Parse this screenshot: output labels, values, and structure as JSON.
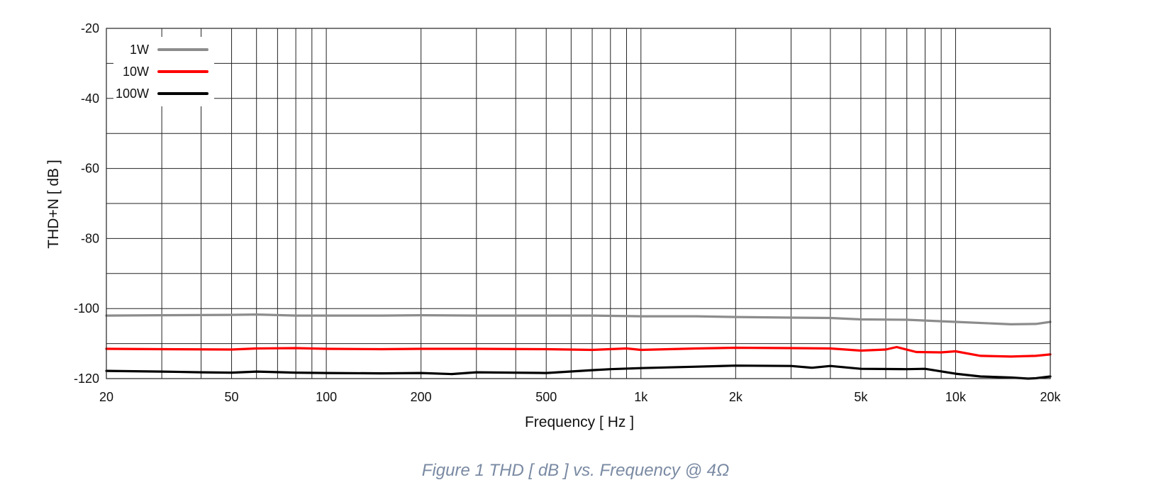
{
  "caption": "Figure 1 THD [ dB ] vs. Frequency @ 4Ω",
  "chart_data": {
    "type": "line",
    "title": "",
    "xlabel": "Frequency [ Hz ]",
    "ylabel": "THD+N [ dB ]",
    "xscale": "log",
    "xlim": [
      20,
      20000
    ],
    "ylim": [
      -120,
      -20
    ],
    "x_ticks": [
      {
        "value": 20,
        "label": "20"
      },
      {
        "value": 50,
        "label": "50"
      },
      {
        "value": 100,
        "label": "100"
      },
      {
        "value": 200,
        "label": "200"
      },
      {
        "value": 500,
        "label": "500"
      },
      {
        "value": 1000,
        "label": "1k"
      },
      {
        "value": 2000,
        "label": "2k"
      },
      {
        "value": 5000,
        "label": "5k"
      },
      {
        "value": 10000,
        "label": "10k"
      },
      {
        "value": 20000,
        "label": "20k"
      }
    ],
    "y_ticks": [
      {
        "value": -20,
        "label": "-20"
      },
      {
        "value": -40,
        "label": "-40"
      },
      {
        "value": -60,
        "label": "-60"
      },
      {
        "value": -80,
        "label": "-80"
      },
      {
        "value": -100,
        "label": "-100"
      },
      {
        "value": -120,
        "label": "-120"
      }
    ],
    "grid": true,
    "legend_position": "top-left",
    "series": [
      {
        "name": "1W",
        "color": "#8c8c8c",
        "points": [
          [
            20,
            -102.0
          ],
          [
            30,
            -101.9
          ],
          [
            50,
            -101.8
          ],
          [
            60,
            -101.7
          ],
          [
            80,
            -102.0
          ],
          [
            100,
            -102.0
          ],
          [
            150,
            -102.0
          ],
          [
            200,
            -101.9
          ],
          [
            300,
            -102.0
          ],
          [
            500,
            -102.0
          ],
          [
            700,
            -102.0
          ],
          [
            1000,
            -102.2
          ],
          [
            1500,
            -102.2
          ],
          [
            2000,
            -102.4
          ],
          [
            3000,
            -102.6
          ],
          [
            4000,
            -102.7
          ],
          [
            5000,
            -103.1
          ],
          [
            7000,
            -103.2
          ],
          [
            10000,
            -103.8
          ],
          [
            15000,
            -104.5
          ],
          [
            18000,
            -104.4
          ],
          [
            20000,
            -103.8
          ]
        ]
      },
      {
        "name": "10W",
        "color": "#ff0000",
        "points": [
          [
            20,
            -111.5
          ],
          [
            30,
            -111.6
          ],
          [
            50,
            -111.7
          ],
          [
            60,
            -111.4
          ],
          [
            80,
            -111.3
          ],
          [
            100,
            -111.5
          ],
          [
            150,
            -111.6
          ],
          [
            200,
            -111.5
          ],
          [
            300,
            -111.5
          ],
          [
            500,
            -111.6
          ],
          [
            700,
            -111.8
          ],
          [
            900,
            -111.4
          ],
          [
            1000,
            -111.8
          ],
          [
            1500,
            -111.4
          ],
          [
            2000,
            -111.2
          ],
          [
            3000,
            -111.3
          ],
          [
            4000,
            -111.4
          ],
          [
            5000,
            -112.0
          ],
          [
            6000,
            -111.7
          ],
          [
            6500,
            -111.0
          ],
          [
            7500,
            -112.4
          ],
          [
            9000,
            -112.5
          ],
          [
            10000,
            -112.2
          ],
          [
            12000,
            -113.5
          ],
          [
            15000,
            -113.7
          ],
          [
            18000,
            -113.5
          ],
          [
            20000,
            -113.1
          ]
        ]
      },
      {
        "name": "100W",
        "color": "#000000",
        "points": [
          [
            20,
            -117.8
          ],
          [
            30,
            -118.0
          ],
          [
            40,
            -118.2
          ],
          [
            50,
            -118.3
          ],
          [
            60,
            -118.0
          ],
          [
            80,
            -118.3
          ],
          [
            100,
            -118.4
          ],
          [
            150,
            -118.5
          ],
          [
            200,
            -118.4
          ],
          [
            250,
            -118.7
          ],
          [
            300,
            -118.2
          ],
          [
            500,
            -118.4
          ],
          [
            700,
            -117.6
          ],
          [
            800,
            -117.3
          ],
          [
            1000,
            -117.0
          ],
          [
            1500,
            -116.6
          ],
          [
            2000,
            -116.3
          ],
          [
            3000,
            -116.4
          ],
          [
            3500,
            -116.9
          ],
          [
            4000,
            -116.4
          ],
          [
            5000,
            -117.2
          ],
          [
            7000,
            -117.3
          ],
          [
            8000,
            -117.2
          ],
          [
            10000,
            -118.6
          ],
          [
            12000,
            -119.4
          ],
          [
            15000,
            -119.7
          ],
          [
            17000,
            -120.0
          ],
          [
            18000,
            -119.9
          ],
          [
            20000,
            -119.4
          ]
        ]
      }
    ]
  }
}
